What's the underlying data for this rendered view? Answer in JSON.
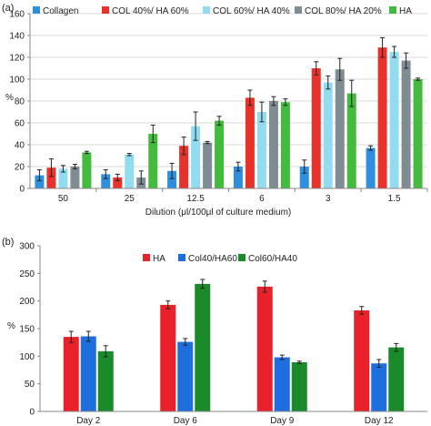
{
  "chart_data": [
    {
      "panel": "(a)",
      "type": "bar",
      "ylabel": "%",
      "xlabel": "Dilution (μl/100μl of culture medium)",
      "ylim": [
        0,
        160
      ],
      "yticks": [
        0,
        20,
        40,
        60,
        80,
        100,
        120,
        140,
        160
      ],
      "grid": true,
      "legend_position": "top",
      "categories": [
        "50",
        "25",
        "12.5",
        "6",
        "3",
        "1.5"
      ],
      "series": [
        {
          "name": "Collagen",
          "color": "#2f8fdc",
          "values": [
            12,
            13,
            16,
            20,
            20,
            37
          ],
          "errors": [
            5,
            4,
            7,
            4,
            6,
            2
          ]
        },
        {
          "name": "COL 40%/ HA 60%",
          "color": "#e8322b",
          "values": [
            19,
            10,
            39,
            83,
            110,
            129
          ],
          "errors": [
            8,
            3,
            8,
            7,
            6,
            9
          ]
        },
        {
          "name": "COL 60%/ HA 40%",
          "color": "#93dcf0",
          "values": [
            18,
            31,
            57,
            70,
            97,
            125
          ],
          "errors": [
            3,
            1,
            13,
            9,
            6,
            5
          ]
        },
        {
          "name": "COL 80%/ HA 20%",
          "color": "#7f8c93",
          "values": [
            20,
            10,
            42,
            80,
            109,
            117
          ],
          "errors": [
            2,
            6,
            1,
            4,
            10,
            7
          ]
        },
        {
          "name": "HA",
          "color": "#43bb3c",
          "values": [
            33,
            50,
            62,
            79,
            87,
            100
          ],
          "errors": [
            1,
            8,
            4,
            3,
            12,
            1
          ]
        }
      ]
    },
    {
      "panel": "(b)",
      "type": "bar",
      "ylabel": "%",
      "xlabel": "",
      "ylim": [
        0,
        300
      ],
      "yticks": [
        0,
        50,
        100,
        150,
        200,
        250,
        300
      ],
      "grid": false,
      "legend_position": "top-center",
      "categories": [
        "Day 2",
        "Day 6",
        "Day 9",
        "Day 12"
      ],
      "series": [
        {
          "name": "HA",
          "color": "#e8212a",
          "values": [
            135,
            193,
            226,
            183
          ],
          "errors": [
            10,
            7,
            10,
            7
          ]
        },
        {
          "name": "Col40/HA60",
          "color": "#1f6ede",
          "values": [
            136,
            126,
            98,
            87
          ],
          "errors": [
            9,
            6,
            4,
            7
          ]
        },
        {
          "name": "Col60/HA40",
          "color": "#1a8a2a",
          "values": [
            109,
            231,
            89,
            116
          ],
          "errors": [
            10,
            8,
            2,
            7
          ]
        }
      ]
    }
  ]
}
